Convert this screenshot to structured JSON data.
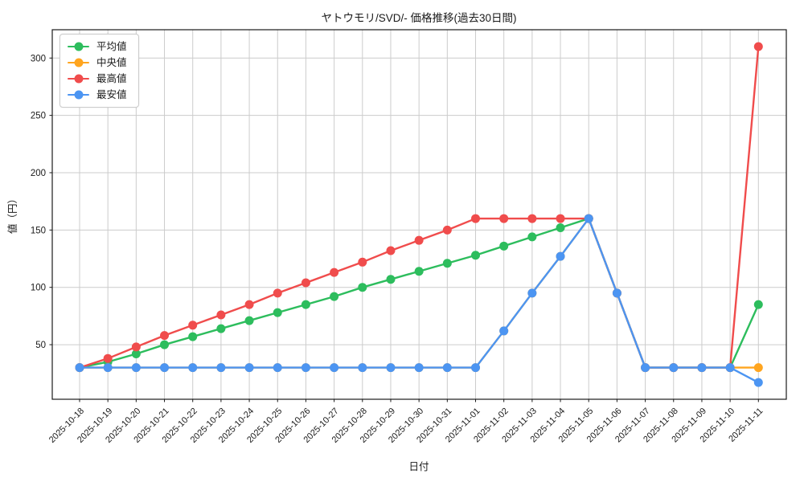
{
  "chart_data": {
    "type": "line",
    "title": "ヤトウモリ/SVD/- 価格推移(過去30日間)",
    "xlabel": "日付",
    "ylabel": "値（円）",
    "grid": true,
    "legend_position": "upper-left",
    "ylim": [
      2.4,
      324.7
    ],
    "yticks": [
      50,
      100,
      150,
      200,
      250,
      300
    ],
    "categories": [
      "2025-10-18",
      "2025-10-19",
      "2025-10-20",
      "2025-10-21",
      "2025-10-22",
      "2025-10-23",
      "2025-10-24",
      "2025-10-25",
      "2025-10-26",
      "2025-10-27",
      "2025-10-28",
      "2025-10-29",
      "2025-10-30",
      "2025-10-31",
      "2025-11-01",
      "2025-11-02",
      "2025-11-03",
      "2025-11-04",
      "2025-11-05",
      "2025-11-06",
      "2025-11-07",
      "2025-11-08",
      "2025-11-09",
      "2025-11-10",
      "2025-11-11"
    ],
    "series": [
      {
        "name": "平均値",
        "key": "average",
        "color": "#2dbd5d",
        "values": [
          30,
          35,
          42,
          50,
          57,
          64,
          71,
          78,
          85,
          92,
          100,
          107,
          114,
          121,
          128,
          136,
          144,
          152,
          160,
          95,
          30,
          30,
          30,
          30,
          85
        ]
      },
      {
        "name": "中央値",
        "key": "median",
        "color": "#ffa51f",
        "values": [
          30,
          30,
          30,
          30,
          30,
          30,
          30,
          30,
          30,
          30,
          30,
          30,
          30,
          30,
          30,
          62,
          95,
          127,
          160,
          95,
          30,
          30,
          30,
          30,
          30
        ]
      },
      {
        "name": "最高値",
        "key": "max",
        "color": "#f04c4c",
        "values": [
          30,
          38,
          48,
          58,
          67,
          76,
          85,
          95,
          104,
          113,
          122,
          132,
          141,
          150,
          160,
          160,
          160,
          160,
          160,
          95,
          30,
          30,
          30,
          30,
          310
        ]
      },
      {
        "name": "最安値",
        "key": "min",
        "color": "#4c95f2",
        "values": [
          30,
          30,
          30,
          30,
          30,
          30,
          30,
          30,
          30,
          30,
          30,
          30,
          30,
          30,
          30,
          62,
          95,
          127,
          160,
          95,
          30,
          30,
          30,
          30,
          17
        ]
      }
    ],
    "colors": {
      "background": "#ffffff",
      "grid": "#cccccc",
      "spine": "#1a1a1a",
      "text": "#1a1a1a"
    }
  }
}
